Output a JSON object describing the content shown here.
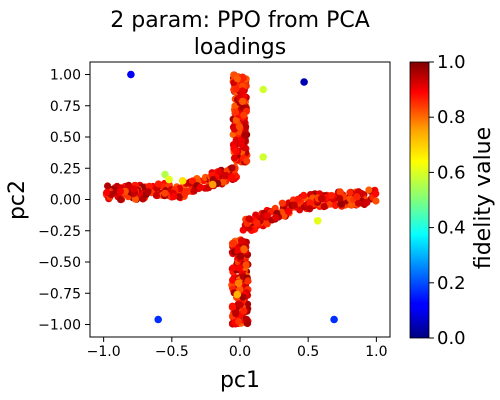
{
  "chart_data": {
    "type": "scatter",
    "title": [
      "2 param:  PPO from PCA",
      "loadings"
    ],
    "xlabel": "pc1",
    "ylabel": "pc2",
    "xlim": [
      -1.1,
      1.1
    ],
    "ylim": [
      -1.1,
      1.1
    ],
    "xticks": [
      -1.0,
      -0.5,
      0.0,
      0.5,
      1.0
    ],
    "xtick_labels": [
      "−1.0",
      "−0.5",
      "0.0",
      "0.5",
      "1.0"
    ],
    "yticks": [
      1.0,
      0.75,
      0.5,
      0.25,
      0.0,
      -0.25,
      -0.5,
      -0.75,
      -1.0
    ],
    "ytick_labels": [
      "1.00",
      "0.75",
      "0.50",
      "0.25",
      "0.00",
      "−0.25",
      "−0.50",
      "−0.75",
      "−1.00"
    ],
    "grid": false,
    "colormap": "jet",
    "colorbar": {
      "label": "fidelity value",
      "range": [
        0.0,
        1.0
      ],
      "ticks": [
        1.0,
        0.8,
        0.6,
        0.4,
        0.2,
        0.0
      ],
      "tick_labels": [
        "1.0",
        "0.8",
        "0.6",
        "0.4",
        "0.2",
        "0.0"
      ]
    },
    "outlier_points": [
      {
        "x": -0.8,
        "y": 1.0,
        "value": 0.12
      },
      {
        "x": 0.47,
        "y": 0.94,
        "value": 0.05
      },
      {
        "x": -0.6,
        "y": -0.96,
        "value": 0.17
      },
      {
        "x": 0.69,
        "y": -0.96,
        "value": 0.17
      },
      {
        "x": 0.17,
        "y": 0.88,
        "value": 0.58
      },
      {
        "x": 0.17,
        "y": 0.34,
        "value": 0.58
      },
      {
        "x": 0.57,
        "y": -0.17,
        "value": 0.6
      },
      {
        "x": -0.55,
        "y": 0.2,
        "value": 0.55
      },
      {
        "x": -0.52,
        "y": 0.16,
        "value": 0.6
      },
      {
        "x": -0.42,
        "y": 0.15,
        "value": 0.65
      },
      {
        "x": -0.2,
        "y": 0.12,
        "value": 0.72
      },
      {
        "x": -0.02,
        "y": -0.76,
        "value": 0.7
      },
      {
        "x": -0.01,
        "y": -0.67,
        "value": 0.75
      },
      {
        "x": 0.03,
        "y": -0.4,
        "value": 0.78
      }
    ],
    "dense_clusters": [
      {
        "region": "upper vertical arm",
        "x_range": [
          -0.05,
          0.05
        ],
        "y_range": [
          0.3,
          1.0
        ],
        "value_range": [
          0.78,
          0.98
        ]
      },
      {
        "region": "lower vertical arm",
        "x_range": [
          -0.06,
          0.06
        ],
        "y_range": [
          -1.0,
          -0.32
        ],
        "value_range": [
          0.78,
          0.98
        ]
      },
      {
        "region": "left diagonal arm",
        "x_range": [
          -0.98,
          -0.02
        ],
        "y_range": [
          -0.05,
          0.28
        ],
        "value_range": [
          0.78,
          0.98
        ]
      },
      {
        "region": "right diagonal arm",
        "x_range": [
          0.02,
          1.0
        ],
        "y_range": [
          -0.3,
          0.1
        ],
        "value_range": [
          0.78,
          0.98
        ]
      }
    ]
  }
}
